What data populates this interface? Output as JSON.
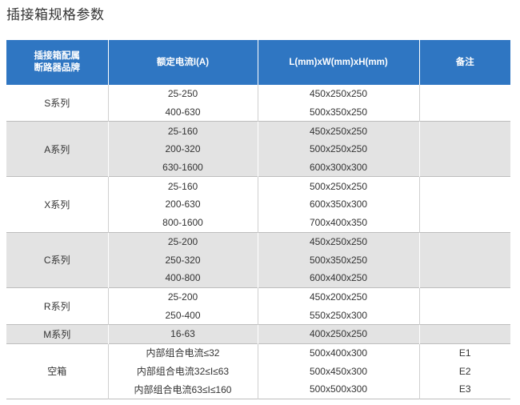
{
  "title": "插接箱规格参数",
  "header": {
    "brand_line1": "插接箱配属",
    "brand_line2": "断路器品牌",
    "current": "额定电流I(A)",
    "dimensions": "L(mm)xW(mm)xH(mm)",
    "note": "备注"
  },
  "groups": [
    {
      "brand": "S系列",
      "shade": "white",
      "rows": [
        {
          "current": "25-250",
          "dim": "450x250x250",
          "note": ""
        },
        {
          "current": "400-630",
          "dim": "500x350x250",
          "note": ""
        }
      ]
    },
    {
      "brand": "A系列",
      "shade": "gray",
      "rows": [
        {
          "current": "25-160",
          "dim": "450x250x250",
          "note": ""
        },
        {
          "current": "200-320",
          "dim": "500x250x250",
          "note": ""
        },
        {
          "current": "630-1600",
          "dim": "600x300x300",
          "note": ""
        }
      ]
    },
    {
      "brand": "X系列",
      "shade": "white",
      "rows": [
        {
          "current": "25-160",
          "dim": "500x250x250",
          "note": ""
        },
        {
          "current": "200-630",
          "dim": "600x350x300",
          "note": ""
        },
        {
          "current": "800-1600",
          "dim": "700x400x350",
          "note": ""
        }
      ]
    },
    {
      "brand": "C系列",
      "shade": "gray",
      "rows": [
        {
          "current": "25-200",
          "dim": "450x250x250",
          "note": ""
        },
        {
          "current": "250-320",
          "dim": "500x350x250",
          "note": ""
        },
        {
          "current": "400-800",
          "dim": "600x400x250",
          "note": ""
        }
      ]
    },
    {
      "brand": "R系列",
      "shade": "white",
      "rows": [
        {
          "current": "25-200",
          "dim": "450x200x250",
          "note": ""
        },
        {
          "current": "250-400",
          "dim": "550x250x300",
          "note": ""
        }
      ]
    },
    {
      "brand": "M系列",
      "shade": "gray",
      "rows": [
        {
          "current": "16-63",
          "dim": "400x250x250",
          "note": ""
        }
      ]
    },
    {
      "brand": "空箱",
      "shade": "white",
      "rows": [
        {
          "current": "内部组合电流≤32",
          "dim": "500x400x300",
          "note": "E1"
        },
        {
          "current": "内部组合电流32≤I≤63",
          "dim": "500x450x300",
          "note": "E2"
        },
        {
          "current": "内部组合电流63≤I≤160",
          "dim": "500x500x300",
          "note": "E3"
        }
      ]
    }
  ],
  "colors": {
    "header_bg": "#2f76c2",
    "shade_gray": "#e3e3e3",
    "text": "#333333"
  }
}
